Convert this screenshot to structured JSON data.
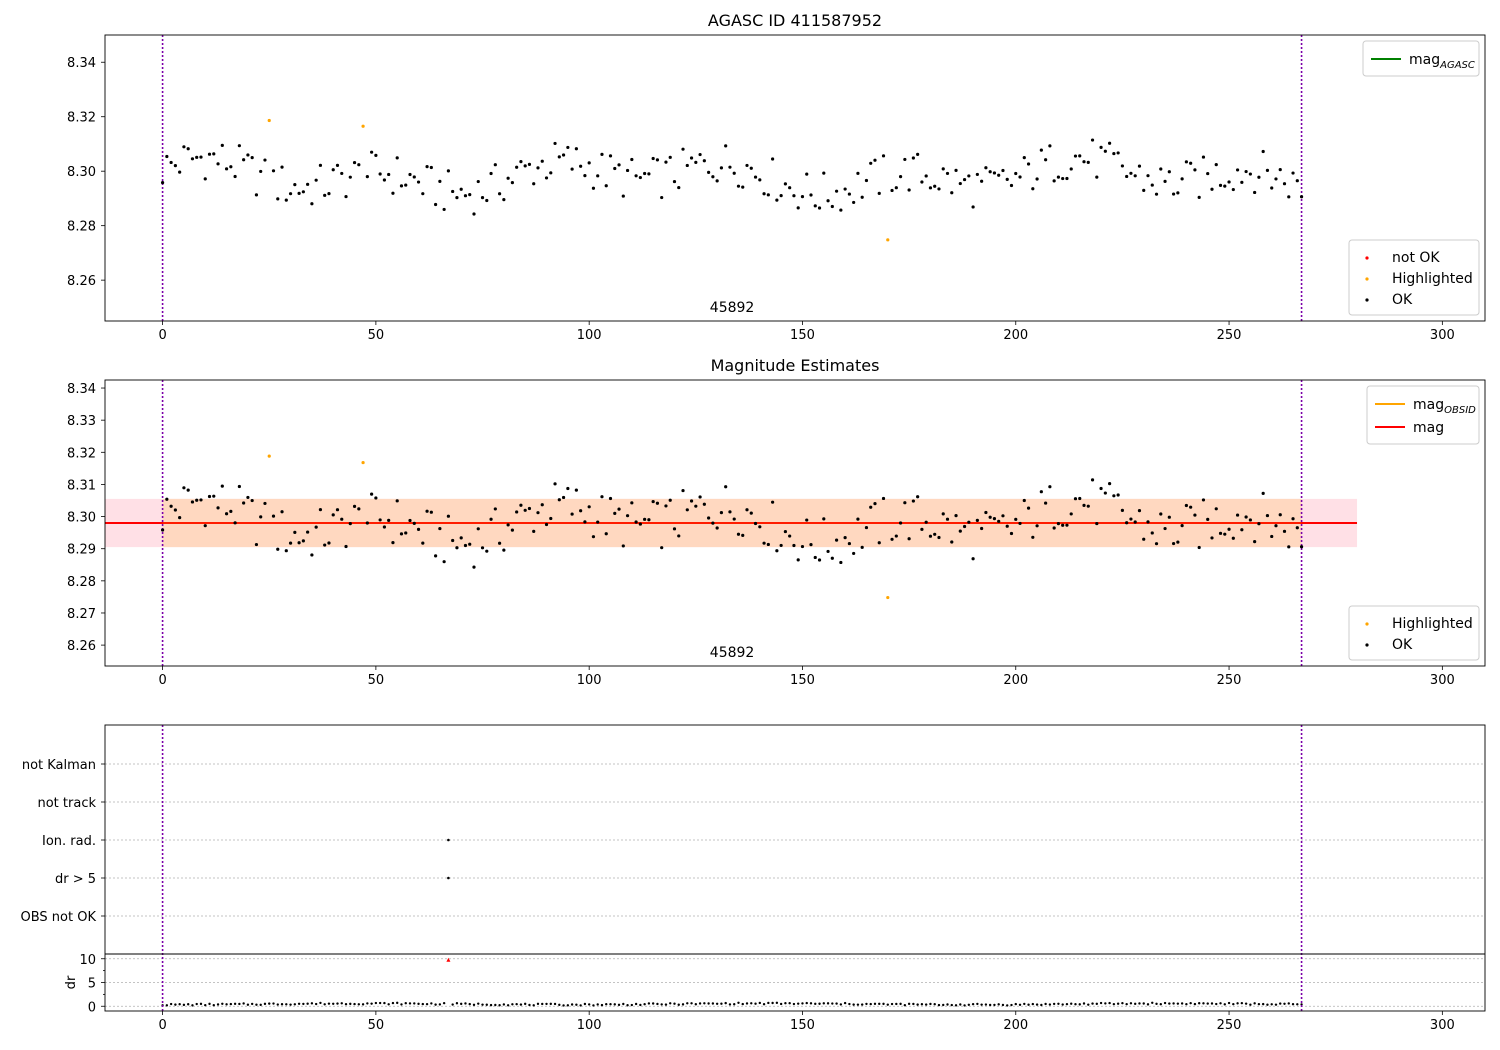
{
  "chart_data": [
    {
      "type": "scatter",
      "title": "AGASC ID 411587952",
      "xlim": [
        -13.5,
        310
      ],
      "ylim": [
        8.245,
        8.35
      ],
      "xticks": [
        0,
        50,
        100,
        150,
        200,
        250,
        300
      ],
      "yticks": [
        8.26,
        8.28,
        8.3,
        8.32,
        8.34
      ],
      "ytick_labels": [
        "8.26",
        "8.28",
        "8.30",
        "8.32",
        "8.34"
      ],
      "grid": false,
      "vlines": [
        0,
        267
      ],
      "obsid_label": "45892",
      "obsid_x": 133.5,
      "line_legend": {
        "placement": "upper right",
        "entries": [
          {
            "label": "mag",
            "sub": "AGASC",
            "color": "#008000"
          }
        ]
      },
      "marker_legend": {
        "placement": "lower right",
        "entries": [
          {
            "label": "not OK",
            "color": "#ff0000"
          },
          {
            "label": "Highlighted",
            "color": "#ffa500"
          },
          {
            "label": "OK",
            "color": "#000000"
          }
        ]
      },
      "highlighted_points": [
        [
          25,
          8.3186
        ],
        [
          47,
          8.3165
        ],
        [
          170,
          8.2748
        ]
      ]
    },
    {
      "type": "scatter",
      "title": "Magnitude Estimates",
      "xlim": [
        -13.5,
        310
      ],
      "ylim": [
        8.2535,
        8.3425
      ],
      "xticks": [
        0,
        50,
        100,
        150,
        200,
        250,
        300
      ],
      "yticks": [
        8.26,
        8.27,
        8.28,
        8.29,
        8.3,
        8.31,
        8.32,
        8.33,
        8.34
      ],
      "ytick_labels": [
        "8.26",
        "8.27",
        "8.28",
        "8.29",
        "8.30",
        "8.31",
        "8.32",
        "8.33",
        "8.34"
      ],
      "grid": false,
      "vlines": [
        0,
        267
      ],
      "obsid_label": "45892",
      "obsid_x": 133.5,
      "mag_line": {
        "value": 8.298,
        "x_range": [
          -13.5,
          280
        ],
        "color": "#ff0000"
      },
      "band_outer": {
        "low": 8.2905,
        "high": 8.3055,
        "x_range": [
          -13.5,
          280
        ],
        "color": "#ffe0e6"
      },
      "band_inner": {
        "low": 8.2905,
        "high": 8.3055,
        "x_range": [
          0,
          267
        ],
        "color": "#ffd8c0"
      },
      "line_legend": {
        "placement": "upper right",
        "entries": [
          {
            "label": "mag",
            "sub": "OBSID",
            "color": "#ffa500"
          },
          {
            "label": "mag",
            "sub": "",
            "color": "#ff0000"
          }
        ]
      },
      "marker_legend": {
        "placement": "lower right",
        "entries": [
          {
            "label": "Highlighted",
            "color": "#ffa500"
          },
          {
            "label": "OK",
            "color": "#000000"
          }
        ]
      },
      "highlighted_points": [
        [
          25,
          8.3188
        ],
        [
          47,
          8.3168
        ],
        [
          170,
          8.2748
        ]
      ]
    },
    {
      "type": "scatter",
      "title": "",
      "xlim": [
        -13.5,
        310
      ],
      "xticks": [
        0,
        50,
        100,
        150,
        200,
        250,
        300
      ],
      "vlines": [
        0,
        267
      ],
      "flag_categories": [
        "not Kalman",
        "not track",
        "Ion. rad.",
        "dr > 5",
        "OBS not OK"
      ],
      "flag_points": [
        {
          "x": 67,
          "category": "Ion. rad."
        },
        {
          "x": 67,
          "category": "dr > 5"
        }
      ],
      "dr_panel": {
        "ylabel": "dr",
        "ylim": [
          -1,
          11
        ],
        "yticks": [
          0,
          5,
          10
        ],
        "ytick_labels": [
          "0",
          "5",
          "10"
        ],
        "grid_lines": [
          0,
          5,
          10
        ],
        "outlier": {
          "x": 67,
          "y": 9.8,
          "color": "#ff0000"
        }
      }
    }
  ]
}
